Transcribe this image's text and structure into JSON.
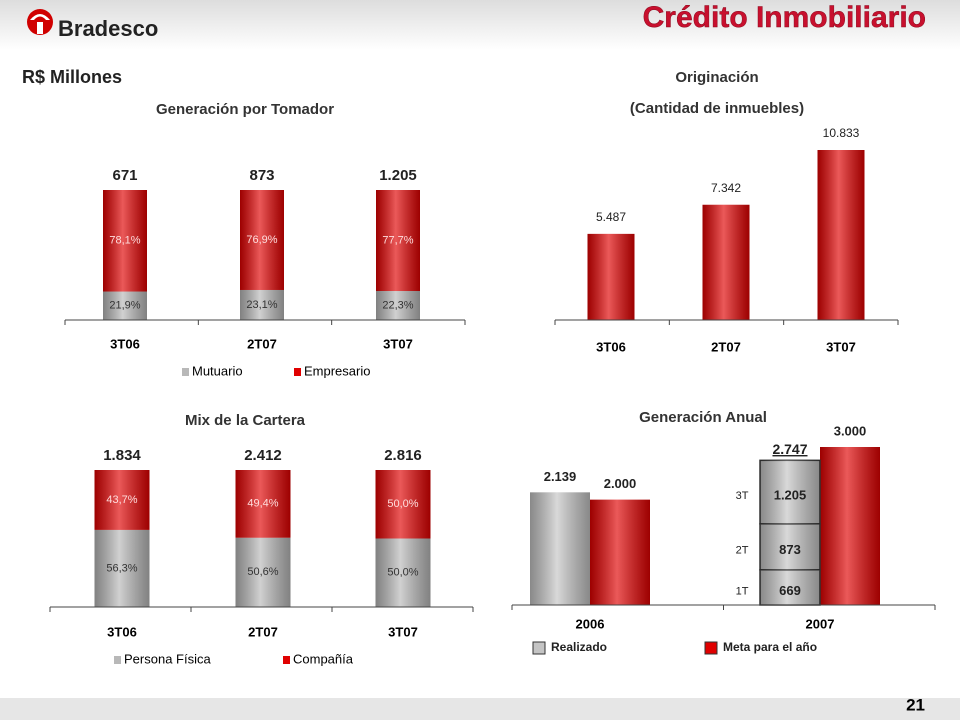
{
  "header": {
    "brand": "Bradesco",
    "title": "Crédito Inmobiliario",
    "subtitle": "R$ Millones",
    "page": "21"
  },
  "chart_data": [
    {
      "type": "stacked100",
      "title": "Generación por Tomador",
      "categories": [
        "3T06",
        "2T07",
        "3T07"
      ],
      "series": [
        {
          "name": "Mutuario",
          "color": "#b8b8b8",
          "values": [
            21.9,
            23.1,
            22.3
          ],
          "value_labels": [
            "21,9%",
            "23,1%",
            "22,3%"
          ]
        },
        {
          "name": "Empresario",
          "color": "#e00000",
          "values": [
            78.1,
            76.9,
            77.7
          ],
          "value_labels": [
            "78,1%",
            "76,9%",
            "77,7%"
          ]
        }
      ],
      "totals": [
        671,
        873,
        1205
      ],
      "total_labels": [
        "671",
        "873",
        "1.205"
      ]
    },
    {
      "type": "bar",
      "title": [
        "Originación",
        "(Cantidad de inmuebles)"
      ],
      "categories": [
        "3T06",
        "2T07",
        "3T07"
      ],
      "values": [
        5487,
        7342,
        10833
      ],
      "value_labels": [
        "5.487",
        "7.342",
        "10.833"
      ],
      "color": "#e00000"
    },
    {
      "type": "stacked100",
      "title": "Mix de la Cartera",
      "categories": [
        "3T06",
        "2T07",
        "3T07"
      ],
      "series": [
        {
          "name": "Persona Física",
          "color": "#b8b8b8",
          "values": [
            56.3,
            50.6,
            50.0
          ],
          "value_labels": [
            "56,3%",
            "50,6%",
            "50,0%"
          ]
        },
        {
          "name": "Compañía",
          "color": "#e00000",
          "values": [
            43.7,
            49.4,
            50.0
          ],
          "value_labels": [
            "43,7%",
            "49,4%",
            "50,0%"
          ]
        }
      ],
      "totals": [
        1834,
        2412,
        2816
      ],
      "total_labels": [
        "1.834",
        "2.412",
        "2.816"
      ]
    },
    {
      "type": "annual",
      "title": "Generación Anual",
      "categories": [
        "2006",
        "2007"
      ],
      "series": [
        {
          "name": "Realizado",
          "color": "#c4c4c4",
          "values": [
            2139,
            null
          ],
          "value_labels": [
            "2.139",
            null
          ]
        },
        {
          "name": "Meta para el año",
          "color": "#e00000",
          "values": [
            2000,
            3000
          ],
          "value_labels": [
            "2.000",
            "3.000"
          ]
        }
      ],
      "stack": {
        "category": 1,
        "labels": [
          "1T",
          "2T",
          "3T"
        ],
        "values": [
          669,
          873,
          1205
        ],
        "value_labels": [
          "669",
          "873",
          "1.205"
        ],
        "total": 2747,
        "total_label": "2.747"
      }
    }
  ]
}
